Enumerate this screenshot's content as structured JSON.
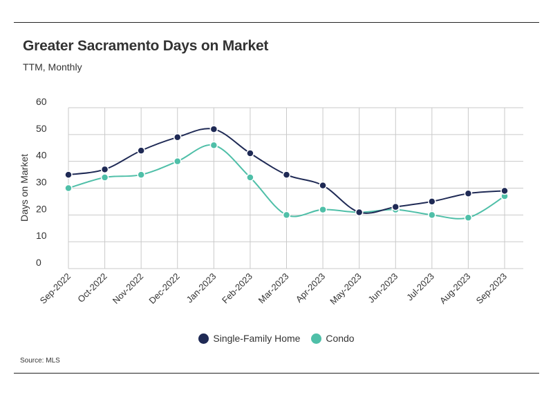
{
  "title": "Greater Sacramento Days on Market",
  "subtitle": "TTM, Monthly",
  "source": "Source: MLS",
  "colors": {
    "single_family": "#1f2a55",
    "condo": "#4fbfa8"
  },
  "chart_data": {
    "type": "line",
    "title": "Greater Sacramento Days on Market",
    "subtitle": "TTM, Monthly",
    "xlabel": "",
    "ylabel": "Days on Market",
    "ylim": [
      0,
      60
    ],
    "yticks": [
      0,
      10,
      20,
      30,
      40,
      50,
      60
    ],
    "grid": true,
    "legend": "bottom",
    "categories": [
      "Sep-2022",
      "Oct-2022",
      "Nov-2022",
      "Dec-2022",
      "Jan-2023",
      "Feb-2023",
      "Mar-2023",
      "Apr-2023",
      "May-2023",
      "Jun-2023",
      "Jul-2023",
      "Aug-2023",
      "Sep-2023"
    ],
    "series": [
      {
        "name": "Single-Family Home",
        "color": "#1f2a55",
        "values": [
          35,
          37,
          44,
          49,
          52,
          43,
          35,
          31,
          21,
          23,
          25,
          28,
          29
        ]
      },
      {
        "name": "Condo",
        "color": "#4fbfa8",
        "values": [
          30,
          34,
          35,
          40,
          46,
          34,
          20,
          22,
          21,
          22,
          20,
          19,
          27
        ]
      }
    ]
  }
}
